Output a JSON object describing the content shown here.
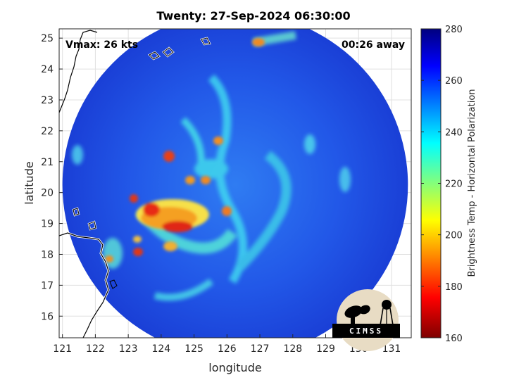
{
  "title": "Twenty: 27-Sep-2024 06:30:00",
  "overlay": {
    "vmax": "Vmax: 26 kts",
    "eta": "00:26 away"
  },
  "axes": {
    "xlabel": "longitude",
    "ylabel": "latitude",
    "xticks": [
      "121",
      "122",
      "123",
      "124",
      "125",
      "126",
      "127",
      "128",
      "129",
      "130",
      "131"
    ],
    "yticks": [
      "16",
      "17",
      "18",
      "19",
      "20",
      "21",
      "22",
      "23",
      "24",
      "25"
    ],
    "xlim": [
      120.9,
      131.6
    ],
    "ylim": [
      15.3,
      25.3
    ],
    "grid": true
  },
  "colorbar": {
    "label": "Brightness Temp - Horizontal Polarization",
    "ticks": [
      "280",
      "260",
      "240",
      "220",
      "200",
      "180",
      "160"
    ],
    "range": [
      160,
      280
    ],
    "colormap": "jet"
  },
  "swath": {
    "center_lon": 126.25,
    "center_lat": 20.25,
    "radius_deg": 5.25
  },
  "logo": {
    "text": "CIMSS"
  },
  "colors": {
    "background_scene": "#2050e0",
    "coast": "#000000",
    "coast_outline": "#ffffff"
  }
}
